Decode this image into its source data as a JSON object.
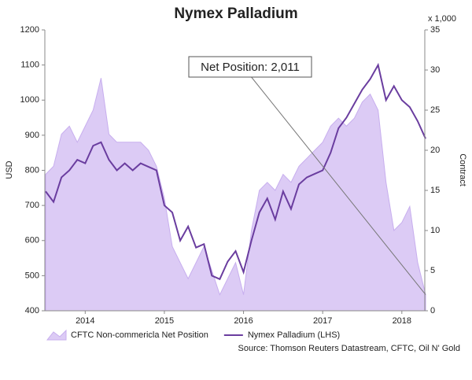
{
  "chart_data": {
    "type": "line",
    "title": "Nymex Palladium",
    "y_label": "USD",
    "y2_label": "Contract",
    "y2_multiplier": "x 1,000",
    "source": "Source: Thomson Reuters Datastream, CFTC, Oil N' Gold",
    "annotation": {
      "text": "Net Position: 2,011"
    },
    "x": [
      2013.5,
      2013.6,
      2013.7,
      2013.8,
      2013.9,
      2014.0,
      2014.1,
      2014.2,
      2014.3,
      2014.4,
      2014.5,
      2014.6,
      2014.7,
      2014.8,
      2014.9,
      2015.0,
      2015.1,
      2015.2,
      2015.3,
      2015.4,
      2015.5,
      2015.6,
      2015.7,
      2015.8,
      2015.9,
      2016.0,
      2016.1,
      2016.2,
      2016.3,
      2016.4,
      2016.5,
      2016.6,
      2016.7,
      2016.8,
      2016.9,
      2017.0,
      2017.1,
      2017.2,
      2017.3,
      2017.4,
      2017.5,
      2017.6,
      2017.7,
      2017.8,
      2017.9,
      2018.0,
      2018.1,
      2018.2,
      2018.3
    ],
    "series": [
      {
        "name": "CFTC Non-commericla Net Position",
        "kind": "area",
        "axis": "y2",
        "color": "#dccbf5",
        "stroke": "#c7aeee",
        "values": [
          17,
          18,
          22,
          23,
          21,
          23,
          25,
          29,
          22,
          21,
          21,
          21,
          21,
          20,
          18,
          14,
          8,
          6,
          4,
          6,
          8,
          5,
          2,
          4,
          6,
          2,
          10,
          15,
          16,
          15,
          17,
          16,
          18,
          19,
          20,
          21,
          23,
          24,
          23,
          24,
          26,
          27,
          25,
          16,
          10,
          11,
          13,
          6,
          2.011
        ]
      },
      {
        "name": "Nymex Palladium (LHS)",
        "kind": "line",
        "color": "#6a3d9f",
        "values": [
          740,
          710,
          780,
          800,
          830,
          820,
          870,
          880,
          830,
          800,
          820,
          800,
          820,
          810,
          800,
          700,
          680,
          600,
          640,
          580,
          590,
          500,
          490,
          540,
          570,
          510,
          600,
          680,
          720,
          660,
          740,
          690,
          760,
          780,
          790,
          800,
          850,
          920,
          950,
          990,
          1030,
          1060,
          1100,
          1000,
          1040,
          1000,
          980,
          940,
          890
        ]
      }
    ],
    "xlim": [
      2013.49,
      2018.29
    ],
    "xticks": [
      2014,
      2015,
      2016,
      2017,
      2018
    ],
    "ylim": [
      400,
      1200
    ],
    "yticks": [
      400,
      500,
      600,
      700,
      800,
      900,
      1000,
      1100,
      1200
    ],
    "y2lim": [
      0,
      35
    ],
    "y2ticks": [
      0,
      5,
      10,
      15,
      20,
      25,
      30,
      35
    ]
  }
}
